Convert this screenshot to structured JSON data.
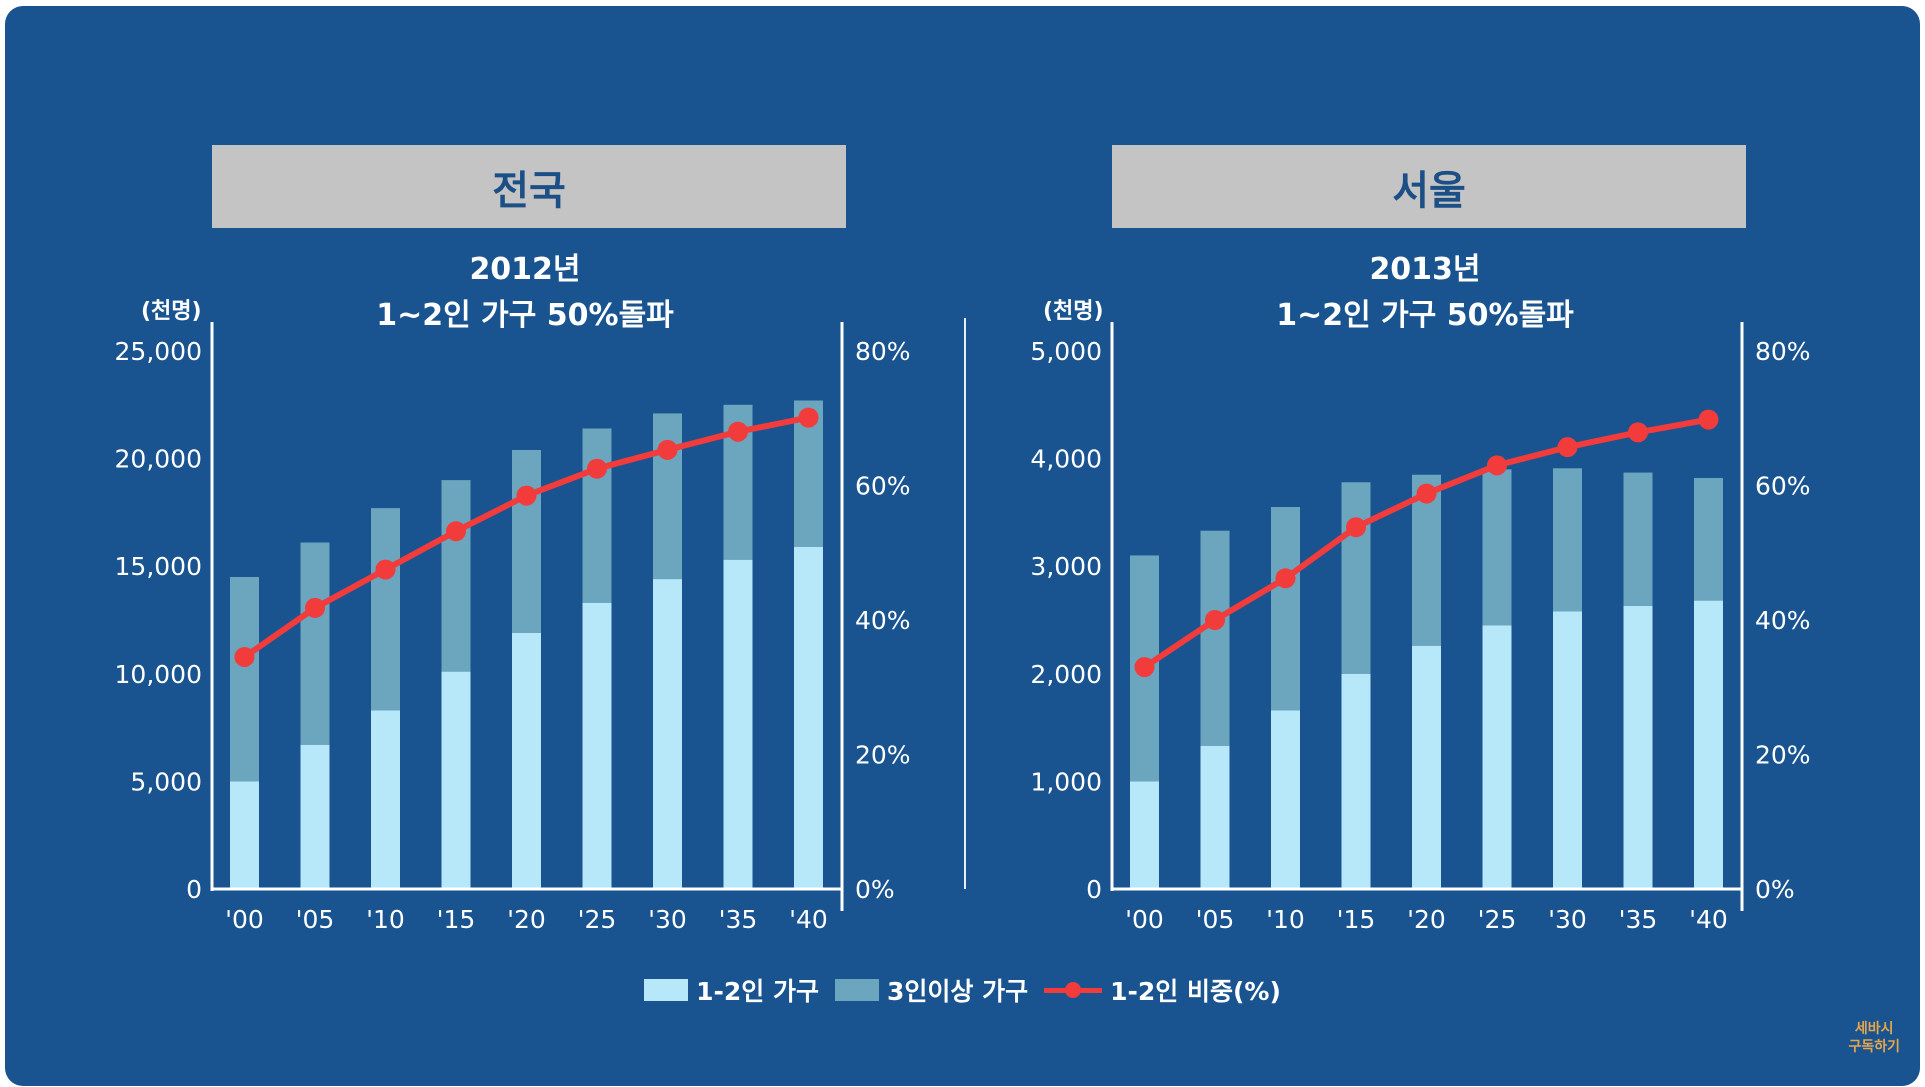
{
  "colors": {
    "background": "#195490",
    "bar_small": "#b6e8fa",
    "bar_large": "#6ba5be",
    "line": "#f23b3b",
    "axis": "#ffffff",
    "title_box": "#c4c4c4",
    "title_text": "#1b4f86"
  },
  "legend": {
    "small_households": "1-2인 가구",
    "large_households": "3인이상 가구",
    "small_share": "1-2인 비중(%)"
  },
  "watermark": {
    "line1": "세바시",
    "line2": "구독하기"
  },
  "chart_data": [
    {
      "type": "bar",
      "stacked": true,
      "title": "전국",
      "subtitle_line1": "2012년",
      "subtitle_line2": "1~2인 가구 50%돌파",
      "ylabel": "(천명)",
      "categories": [
        "'00",
        "'05",
        "'10",
        "'15",
        "'20",
        "'25",
        "'30",
        "'35",
        "'40"
      ],
      "ylim": [
        0,
        25000
      ],
      "yticks": [
        "0",
        "5,000",
        "10,000",
        "15,000",
        "20,000",
        "25,000"
      ],
      "y2lim": [
        0,
        80
      ],
      "y2ticks": [
        "0%",
        "20%",
        "40%",
        "60%",
        "80%"
      ],
      "series": [
        {
          "name": "1-2인 가구",
          "values": [
            5000,
            6700,
            8300,
            10100,
            11900,
            13300,
            14400,
            15300,
            15900
          ]
        },
        {
          "name": "3인이상 가구",
          "values": [
            9500,
            9400,
            9400,
            8900,
            8500,
            8100,
            7700,
            7200,
            6800
          ]
        },
        {
          "name": "1-2인 비중(%)",
          "axis": "right",
          "values": [
            34.5,
            41.8,
            47.5,
            53.2,
            58.5,
            62.5,
            65.3,
            68.0,
            70.1
          ]
        }
      ]
    },
    {
      "type": "bar",
      "stacked": true,
      "title": "서울",
      "subtitle_line1": "2013년",
      "subtitle_line2": "1~2인 가구 50%돌파",
      "ylabel": "(천명)",
      "categories": [
        "'00",
        "'05",
        "'10",
        "'15",
        "'20",
        "'25",
        "'30",
        "'35",
        "'40"
      ],
      "ylim": [
        0,
        5000
      ],
      "yticks": [
        "0",
        "1,000",
        "2,000",
        "3,000",
        "4,000",
        "5,000"
      ],
      "y2lim": [
        0,
        80
      ],
      "y2ticks": [
        "0%",
        "20%",
        "40%",
        "60%",
        "80%"
      ],
      "series": [
        {
          "name": "1-2인 가구",
          "values": [
            1000,
            1330,
            1660,
            2000,
            2260,
            2450,
            2580,
            2630,
            2680
          ]
        },
        {
          "name": "3인이상 가구",
          "values": [
            2100,
            2000,
            1890,
            1780,
            1590,
            1450,
            1330,
            1240,
            1140
          ]
        },
        {
          "name": "1-2인 비중(%)",
          "axis": "right",
          "values": [
            33.0,
            40.0,
            46.2,
            53.8,
            58.8,
            63.0,
            65.7,
            67.9,
            69.8
          ]
        }
      ]
    }
  ]
}
